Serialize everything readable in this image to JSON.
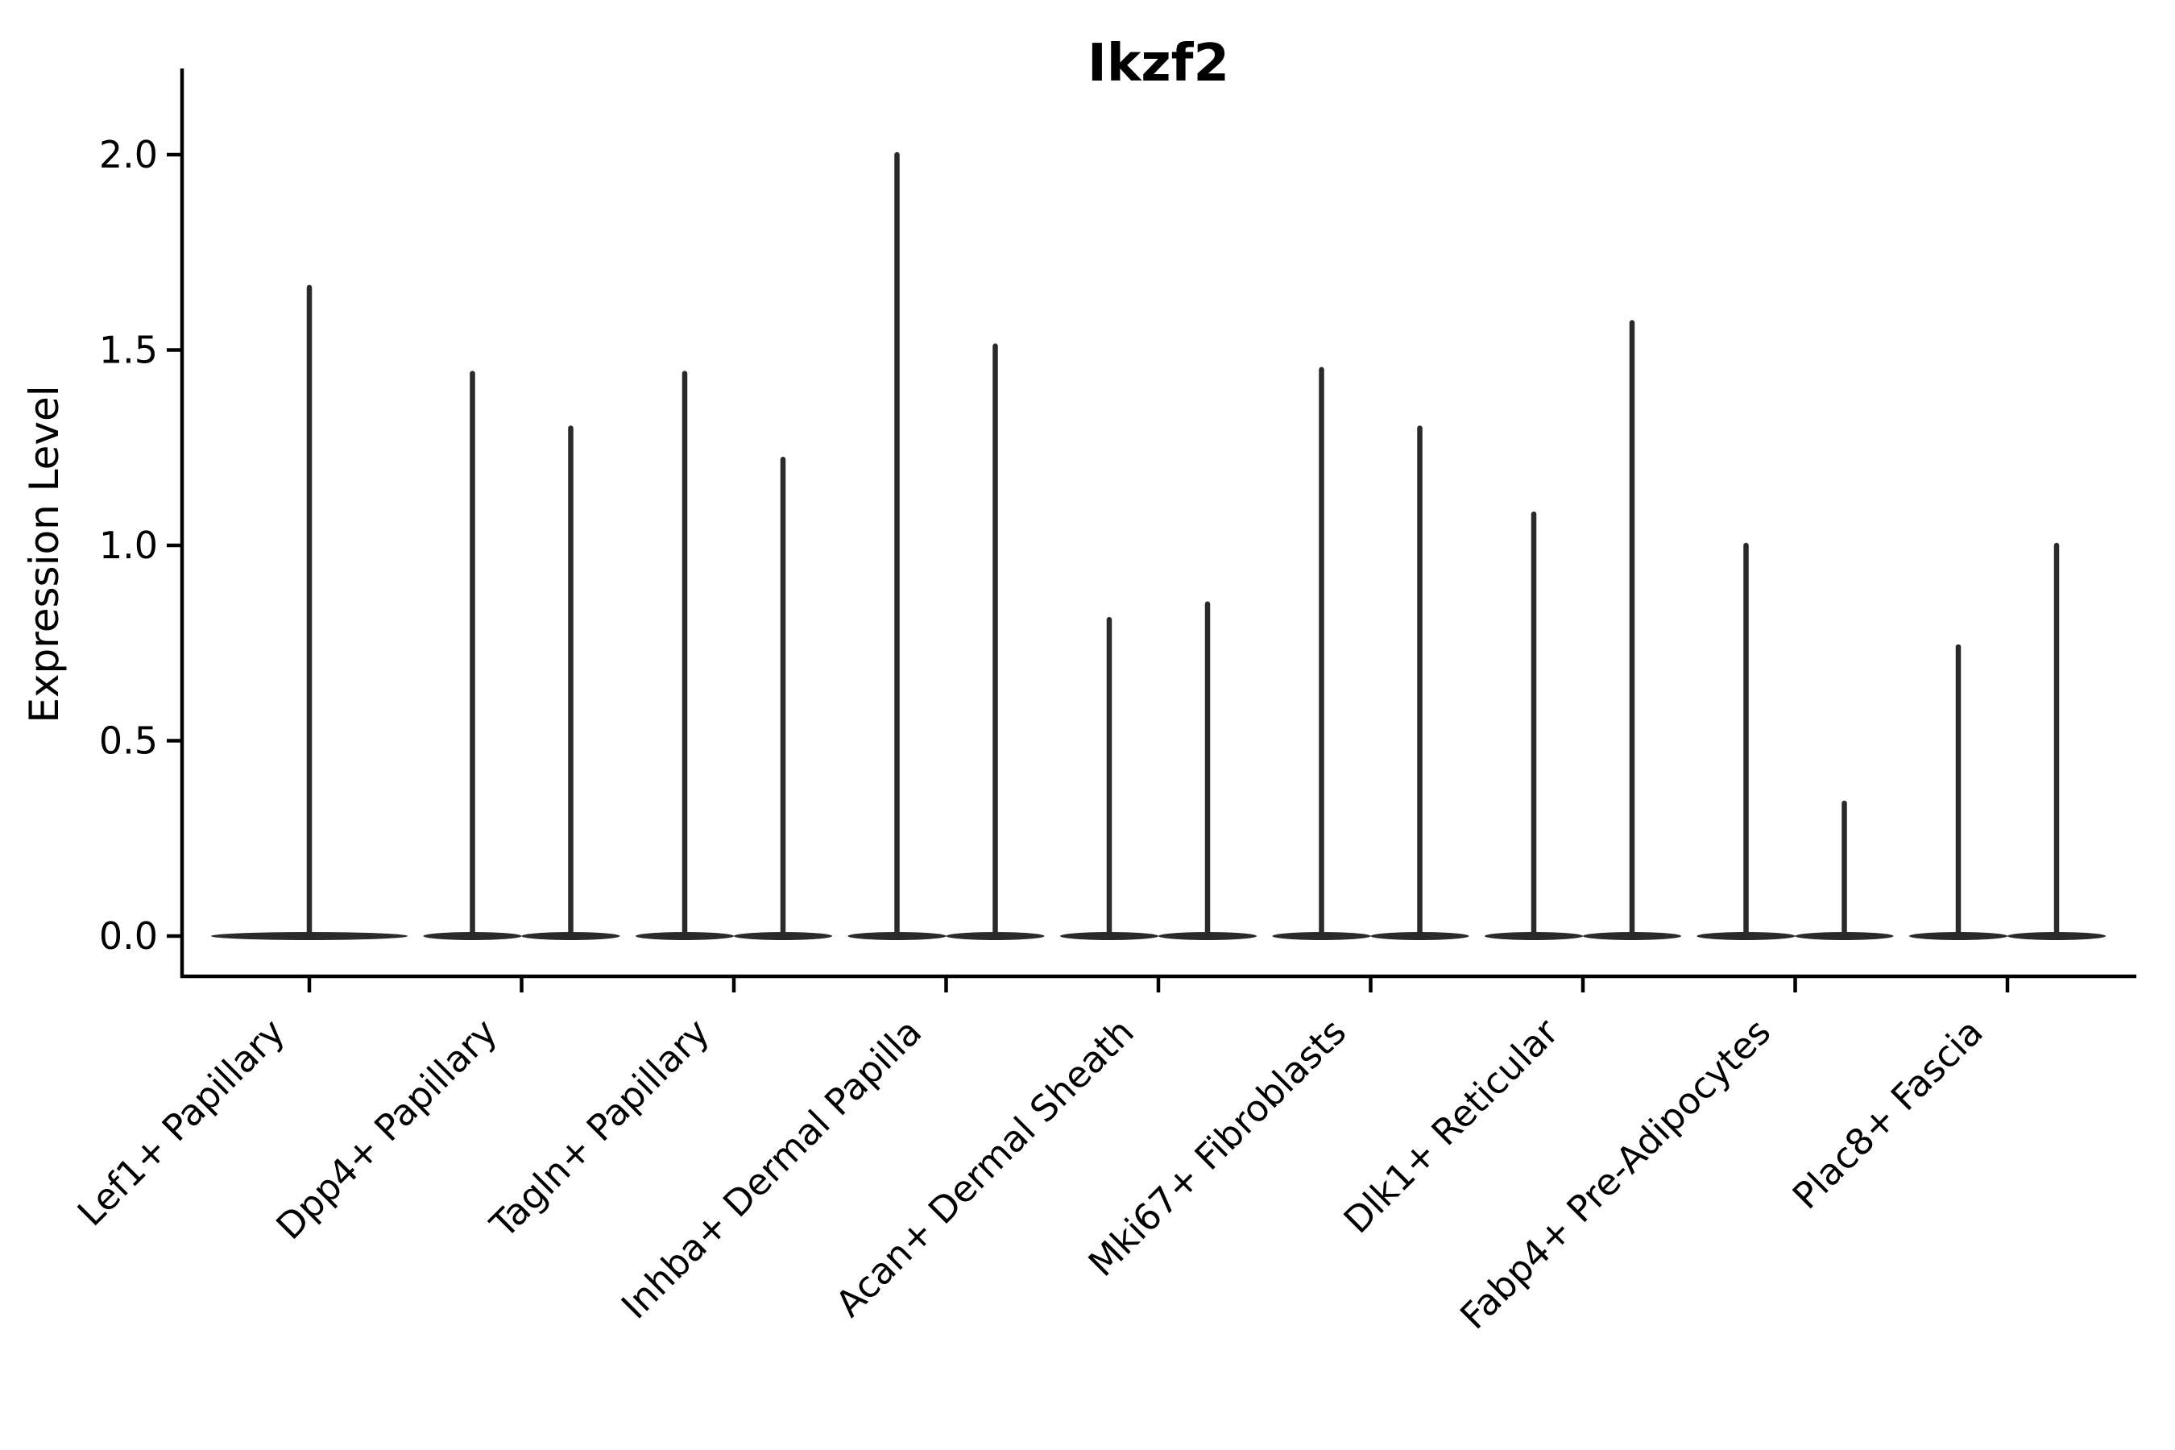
{
  "figure": {
    "background_color": "#ffffff"
  },
  "colors": {
    "violin": "#2a2a2a",
    "axis": "#000000",
    "text": "#000000"
  },
  "chart_data": {
    "type": "violin",
    "title": "Ikzf2",
    "ylabel": "Expression Level",
    "xlabel": "",
    "ylim": [
      0,
      2.05
    ],
    "yticks": [
      0.0,
      0.5,
      1.0,
      1.5,
      2.0
    ],
    "ytick_labels": [
      "0.0",
      "0.5",
      "1.0",
      "1.5",
      "2.0"
    ],
    "grid": false,
    "legend": false,
    "x_tick_label_rotation_deg": 45,
    "violin_shape": "near-zero-width violins: dense flat mass at 0 with a thin vertical spike up to the max expression value",
    "categories": [
      "Lef1+ Papillary",
      "Dpp4+ Papillary",
      "Tagln+ Papillary",
      "Inhba+ Dermal Papilla",
      "Acan+ Dermal Sheath",
      "Mki67+ Fibroblasts",
      "Dlk1+ Reticular",
      "Fabp4+ Pre-Adipocytes",
      "Plac8+ Fascia"
    ],
    "violins": [
      {
        "category": "Lef1+ Papillary",
        "baseline_value": 0.0,
        "group_maxima": [
          1.66
        ]
      },
      {
        "category": "Dpp4+ Papillary",
        "baseline_value": 0.0,
        "group_maxima": [
          1.44,
          1.3
        ]
      },
      {
        "category": "Tagln+ Papillary",
        "baseline_value": 0.0,
        "group_maxima": [
          1.44,
          1.22
        ]
      },
      {
        "category": "Inhba+ Dermal Papilla",
        "baseline_value": 0.0,
        "group_maxima": [
          2.0,
          1.51
        ]
      },
      {
        "category": "Acan+ Dermal Sheath",
        "baseline_value": 0.0,
        "group_maxima": [
          0.81,
          0.85
        ]
      },
      {
        "category": "Mki67+ Fibroblasts",
        "baseline_value": 0.0,
        "group_maxima": [
          1.45,
          1.3
        ]
      },
      {
        "category": "Dlk1+ Reticular",
        "baseline_value": 0.0,
        "group_maxima": [
          1.08,
          1.57
        ]
      },
      {
        "category": "Fabp4+ Pre-Adipocytes",
        "baseline_value": 0.0,
        "group_maxima": [
          1.0,
          0.34
        ]
      },
      {
        "category": "Plac8+ Fascia",
        "baseline_value": 0.0,
        "group_maxima": [
          0.74,
          1.0
        ]
      }
    ]
  }
}
